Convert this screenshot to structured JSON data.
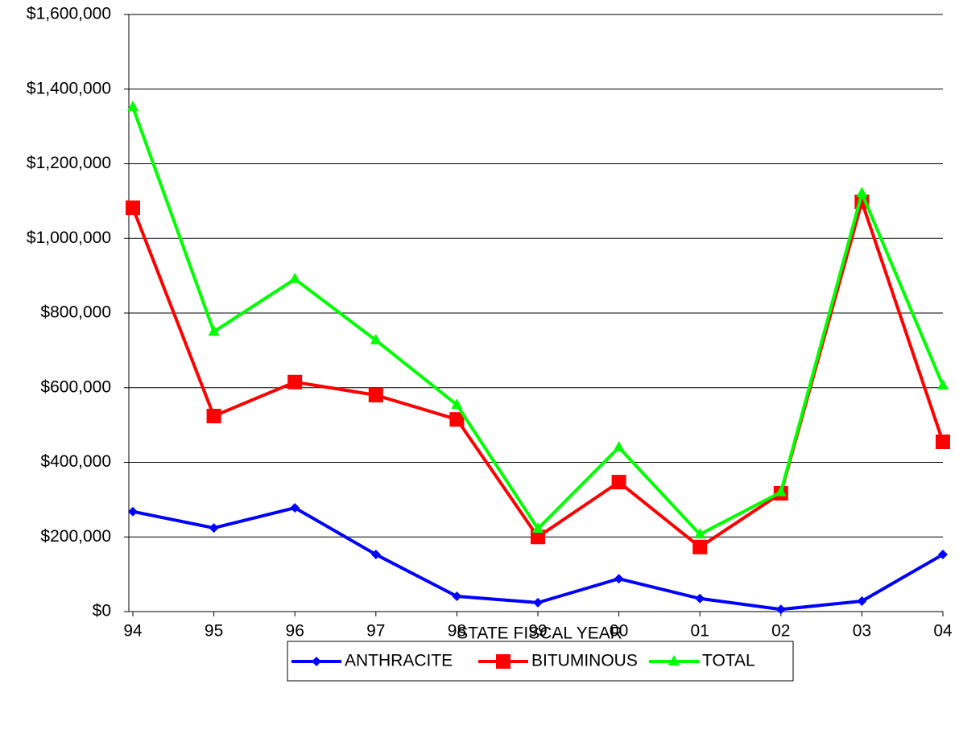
{
  "chart_data": {
    "type": "line",
    "x_label": "STATE FISCAL YEAR",
    "categories": [
      "94",
      "95",
      "96",
      "97",
      "98",
      "99",
      "00",
      "01",
      "02",
      "03",
      "04"
    ],
    "series": [
      {
        "name": "ANTHRACITE",
        "color": "#0000ff",
        "marker": "diamond",
        "values": [
          268000,
          224000,
          278000,
          153000,
          41000,
          24000,
          88000,
          35000,
          6000,
          28000,
          153000
        ]
      },
      {
        "name": "BITUMINOUS",
        "color": "#ff0000",
        "marker": "square",
        "values": [
          1082000,
          524000,
          615000,
          580000,
          515000,
          200000,
          347000,
          173000,
          317000,
          1098000,
          455000
        ]
      },
      {
        "name": "TOTAL",
        "color": "#00ff00",
        "marker": "triangle",
        "values": [
          1352000,
          750000,
          891000,
          727000,
          554000,
          222000,
          440000,
          207000,
          320000,
          1121000,
          606000
        ]
      }
    ],
    "ylim": [
      0,
      1600000
    ],
    "yticks": [
      {
        "value": 0,
        "label": "$0"
      },
      {
        "value": 200000,
        "label": "$200,000"
      },
      {
        "value": 400000,
        "label": "$400,000"
      },
      {
        "value": 600000,
        "label": "$600,000"
      },
      {
        "value": 800000,
        "label": "$800,000"
      },
      {
        "value": 1000000,
        "label": "$1,000,000"
      },
      {
        "value": 1200000,
        "label": "$1,200,000"
      },
      {
        "value": 1400000,
        "label": "$1,400,000"
      },
      {
        "value": 1600000,
        "label": "$1,600,000"
      }
    ],
    "grid": true,
    "legend": "bottom"
  }
}
